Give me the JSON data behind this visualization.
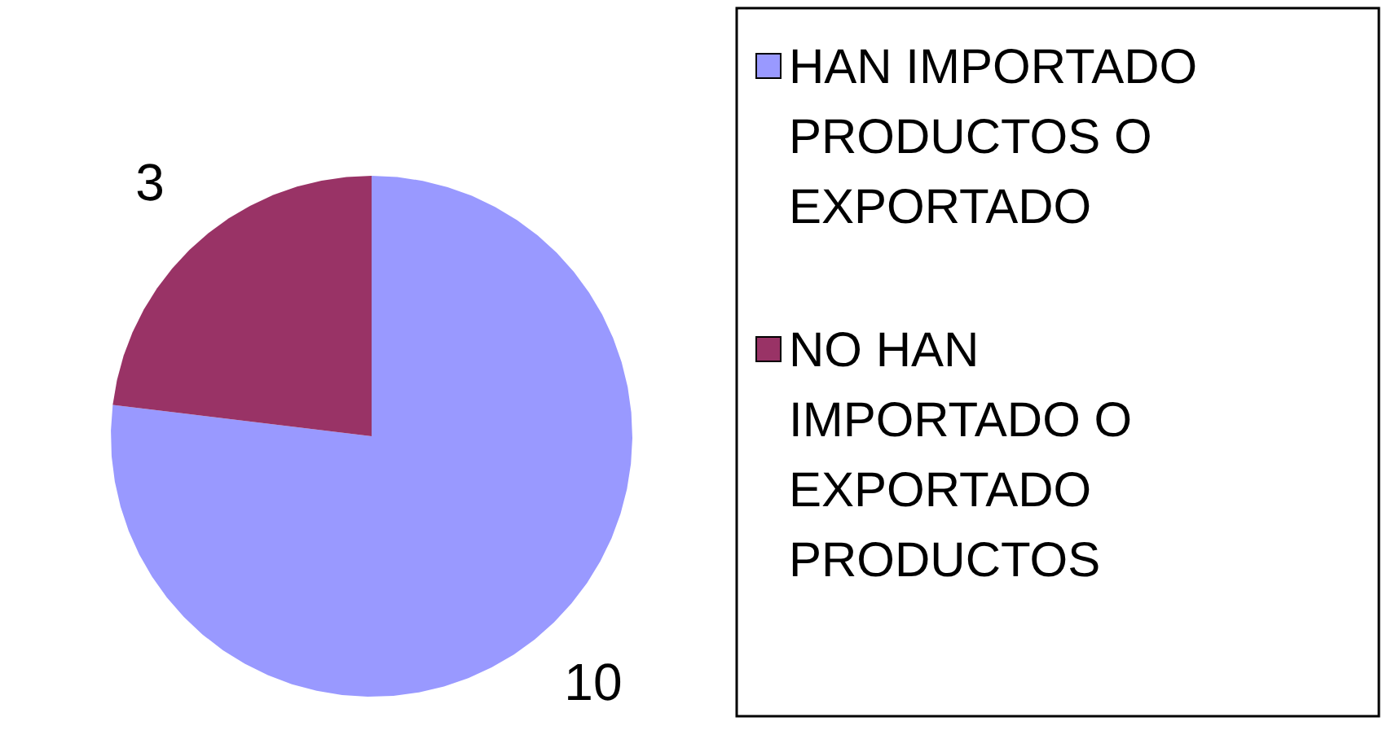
{
  "chart_data": {
    "type": "pie",
    "categories": [
      "HAN IMPORTADO PRODUCTOS O EXPORTADO",
      "NO HAN IMPORTADO O EXPORTADO PRODUCTOS"
    ],
    "values": [
      10,
      3
    ],
    "colors": [
      "#9999ff",
      "#993366"
    ],
    "data_labels": true,
    "legend": "right"
  }
}
